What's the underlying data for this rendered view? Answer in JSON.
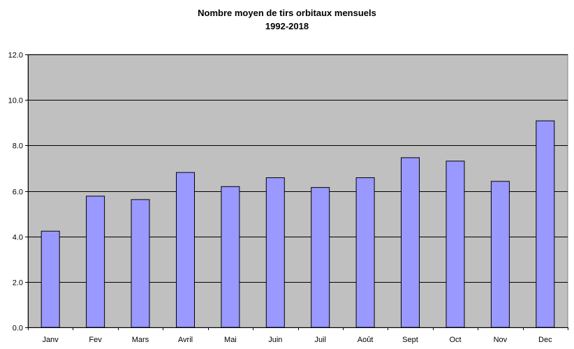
{
  "chart_data": {
    "type": "bar",
    "title": "Nombre moyen de tirs orbitaux mensuels",
    "subtitle": "1992-2018",
    "categories": [
      "Janv",
      "Fev",
      "Mars",
      "Avril",
      "Mai",
      "Juin",
      "Juil",
      "Août",
      "Sept",
      "Oct",
      "Nov",
      "Dec"
    ],
    "values": [
      4.23,
      5.77,
      5.62,
      6.81,
      6.19,
      6.58,
      6.15,
      6.58,
      7.46,
      7.31,
      6.42,
      9.08
    ],
    "ylim": [
      0,
      12
    ],
    "yticks": [
      "0.0",
      "2.0",
      "4.0",
      "6.0",
      "8.0",
      "10.0",
      "12.0"
    ],
    "grid": true,
    "legend": "none",
    "colors": {
      "bar_fill": "#9999ff",
      "bar_stroke": "#000000",
      "plot_background": "#c0c0c0",
      "gridline": "#000000"
    }
  }
}
